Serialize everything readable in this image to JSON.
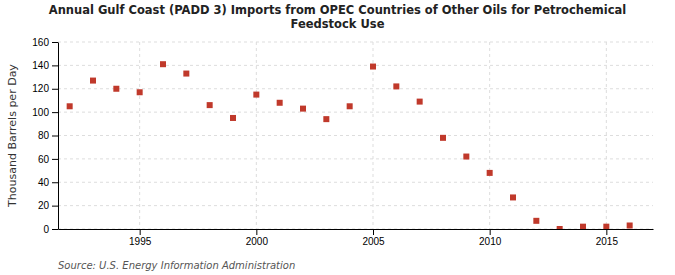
{
  "chart_data": {
    "type": "scatter",
    "title": "Annual Gulf Coast (PADD 3) Imports from OPEC Countries of Other Oils for Petrochemical\nFeedstock Use",
    "ylabel": "Thousand Barrels per Day",
    "source": "Source: U.S. Energy Information Administration",
    "x": [
      1992,
      1993,
      1994,
      1995,
      1996,
      1997,
      1998,
      1999,
      2000,
      2001,
      2002,
      2003,
      2004,
      2005,
      2006,
      2007,
      2008,
      2009,
      2010,
      2011,
      2012,
      2013,
      2014,
      2015,
      2016
    ],
    "values": [
      105,
      127,
      120,
      117,
      141,
      133,
      106,
      95,
      115,
      108,
      103,
      94,
      105,
      139,
      122,
      109,
      78,
      62,
      48,
      27,
      7,
      0,
      2,
      2,
      3
    ],
    "color": "#c0392b",
    "marker": "square",
    "grid": true,
    "xlim": [
      1991.5,
      2017
    ],
    "xticks": [
      1995,
      2000,
      2005,
      2010,
      2015
    ],
    "ylim": [
      0,
      160
    ],
    "yticks": [
      0,
      20,
      40,
      60,
      80,
      100,
      120,
      140,
      160
    ]
  }
}
